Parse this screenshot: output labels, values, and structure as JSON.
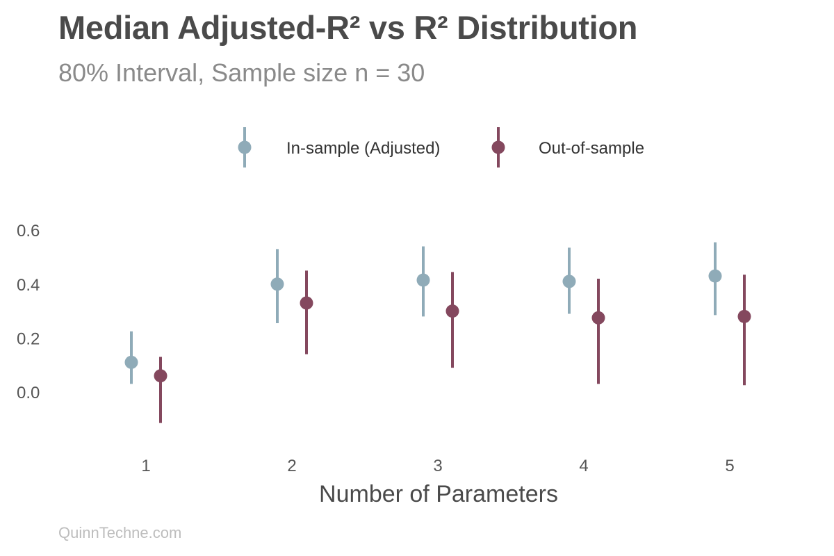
{
  "header": {
    "title": "Median Adjusted-R² vs R² Distribution",
    "subtitle": "80% Interval, Sample size n = 30"
  },
  "caption": "QuinnTechne.com",
  "chart_data": {
    "type": "scatter",
    "title": "Median Adjusted-R² vs R² Distribution",
    "subtitle": "80% Interval, Sample size n = 30",
    "xlabel": "Number of Parameters",
    "ylabel": "",
    "categories": [
      "1",
      "2",
      "3",
      "4",
      "5"
    ],
    "y_ticks": [
      "0.0",
      "0.2",
      "0.4",
      "0.6"
    ],
    "y_tick_values": [
      0.0,
      0.2,
      0.4,
      0.6
    ],
    "ylim": [
      -0.12,
      0.62
    ],
    "grid": false,
    "legend_position": "top",
    "series": [
      {
        "name": "In-sample (Adjusted)",
        "color": "#8fabb8",
        "median": [
          0.11,
          0.4,
          0.415,
          0.41,
          0.43
        ],
        "lower": [
          0.03,
          0.255,
          0.28,
          0.29,
          0.285
        ],
        "upper": [
          0.225,
          0.53,
          0.54,
          0.535,
          0.555
        ]
      },
      {
        "name": "Out-of-sample",
        "color": "#84485e",
        "median": [
          0.06,
          0.33,
          0.3,
          0.275,
          0.28
        ],
        "lower": [
          -0.115,
          0.14,
          0.09,
          0.03,
          0.025
        ],
        "upper": [
          0.13,
          0.45,
          0.445,
          0.42,
          0.435
        ]
      }
    ]
  }
}
